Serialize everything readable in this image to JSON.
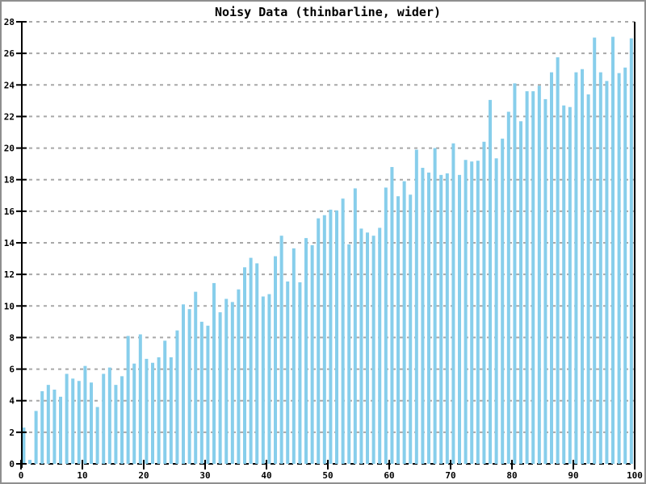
{
  "window": {
    "title": "Noisy Data (thinbarline, wider)"
  },
  "chart_data": {
    "type": "bar",
    "title": "Noisy Data (thinbarline, wider)",
    "xlabel": "",
    "ylabel": "",
    "legend": "none",
    "xlim": [
      0,
      100
    ],
    "ylim": [
      0,
      28
    ],
    "xticks": [
      0,
      10,
      20,
      30,
      40,
      50,
      60,
      70,
      80,
      90,
      100
    ],
    "yticks": [
      0,
      2,
      4,
      6,
      8,
      10,
      12,
      14,
      16,
      18,
      20,
      22,
      24,
      26,
      28
    ],
    "grid": "horizontal dashed gray gridlines at every y tick; dashed black line at y=0",
    "bar_style": "thin vertical bars, ~4px wide, one per unit x (bars centered near x+0.5)",
    "n_bars": 100,
    "values": [
      2.3,
      0.25,
      3.35,
      4.6,
      5.0,
      4.7,
      4.25,
      5.7,
      5.4,
      5.25,
      6.2,
      5.15,
      3.6,
      5.7,
      6.1,
      5.0,
      5.55,
      8.1,
      6.35,
      8.2,
      6.65,
      6.4,
      6.75,
      7.8,
      6.75,
      8.45,
      10.1,
      9.8,
      10.9,
      9.0,
      8.75,
      11.45,
      9.6,
      10.45,
      10.25,
      11.05,
      12.45,
      13.05,
      12.7,
      10.6,
      10.75,
      13.15,
      14.45,
      11.55,
      13.65,
      11.5,
      14.3,
      13.85,
      15.55,
      15.75,
      16.1,
      16.05,
      16.8,
      13.9,
      17.45,
      14.9,
      14.65,
      14.45,
      14.95,
      17.5,
      18.8,
      16.95,
      17.9,
      17.05,
      19.9,
      18.75,
      18.45,
      20.0,
      18.3,
      18.4,
      20.3,
      18.3,
      19.25,
      19.15,
      19.2,
      20.4,
      23.05,
      19.35,
      20.6,
      22.3,
      24.1,
      21.7,
      23.6,
      23.6,
      23.95,
      23.1,
      24.8,
      25.75,
      22.7,
      22.6,
      24.8,
      25.0,
      23.4,
      27.0,
      24.8,
      24.25,
      27.05,
      24.75,
      25.1,
      26.95
    ],
    "colors": {
      "bar": "#87CEEB",
      "grid": "#A8A8A8",
      "zero_line": "#000000",
      "axis": "#000000",
      "text": "#000000",
      "background": "#FFFFFF",
      "frame_border": "#8F8F8F"
    }
  }
}
